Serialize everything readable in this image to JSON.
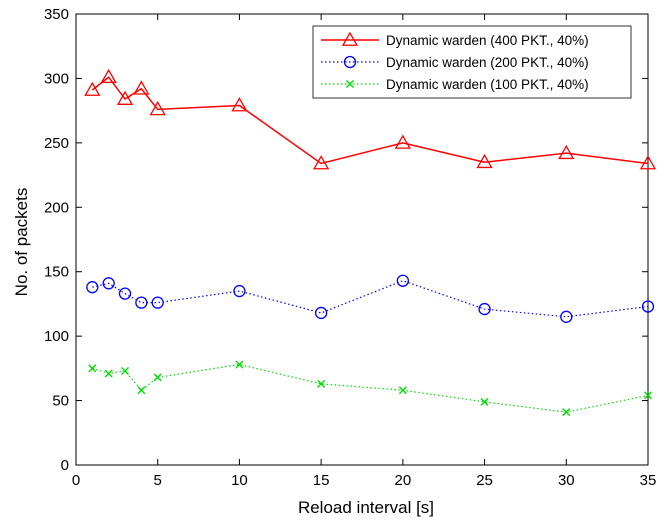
{
  "chart_data": {
    "type": "line",
    "title": "",
    "xlabel": "Reload interval [s]",
    "ylabel": "No. of packets",
    "xlim": [
      0,
      35
    ],
    "ylim": [
      0,
      350
    ],
    "xticks": [
      0,
      5,
      10,
      15,
      20,
      25,
      30,
      35
    ],
    "yticks": [
      0,
      50,
      100,
      150,
      200,
      250,
      300,
      350
    ],
    "grid": false,
    "legend_position": "top-right",
    "x": [
      1,
      2,
      3,
      4,
      5,
      10,
      15,
      20,
      25,
      30,
      35
    ],
    "series": [
      {
        "name": "Dynamic warden (400 PKT., 40%)",
        "color": "#ff0000",
        "line_style": "solid",
        "marker": "triangle",
        "values": [
          291,
          301,
          284,
          292,
          276,
          279,
          234,
          250,
          235,
          242,
          234
        ]
      },
      {
        "name": "Dynamic warden (200 PKT., 40%)",
        "color": "#0000ff",
        "line_style": "dotted",
        "marker": "circle",
        "values": [
          138,
          141,
          133,
          126,
          126,
          135,
          118,
          143,
          121,
          115,
          123
        ]
      },
      {
        "name": "Dynamic warden (100 PKT., 40%)",
        "color": "#00dd00",
        "line_style": "dotted",
        "marker": "x",
        "values": [
          75,
          71,
          73,
          58,
          68,
          78,
          63,
          58,
          49,
          41,
          54
        ]
      }
    ]
  }
}
